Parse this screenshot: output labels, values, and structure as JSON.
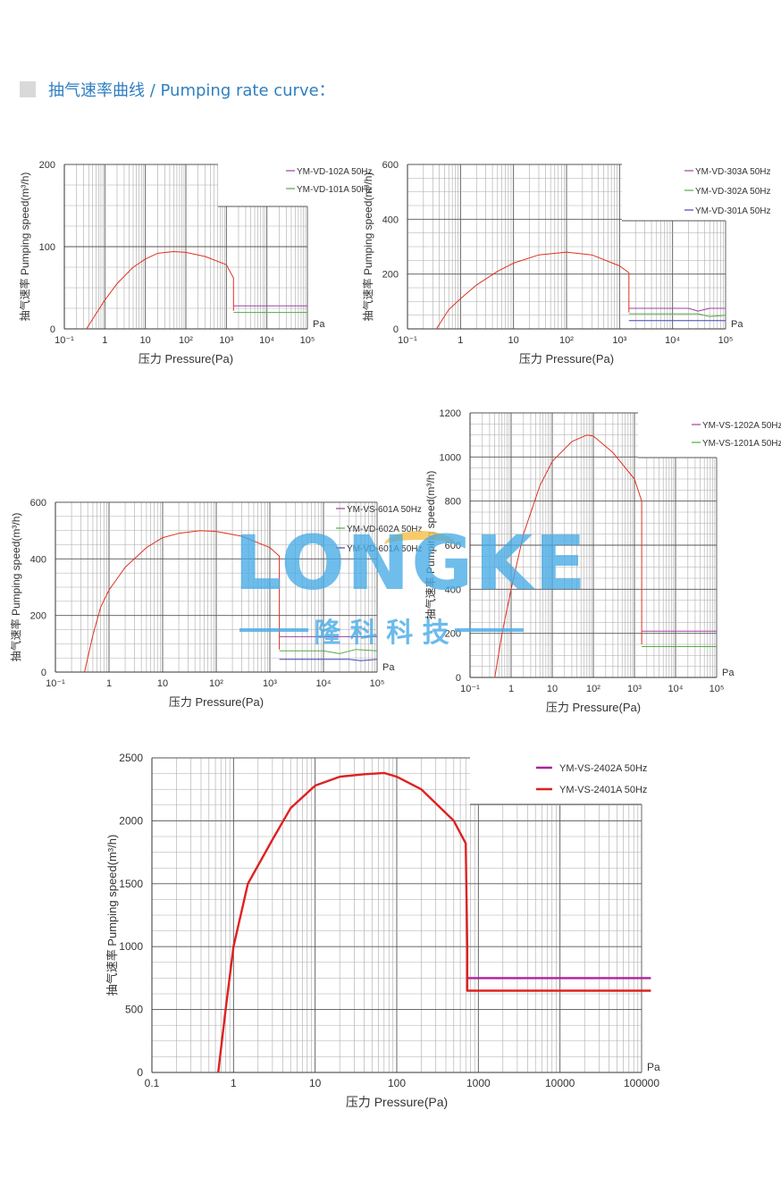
{
  "header": {
    "title": "抽气速率曲线 / Pumping rate curve："
  },
  "watermark": {
    "logo": "LONGKE",
    "subtitle": "隆 科 科 技"
  },
  "chart_data": [
    {
      "type": "line",
      "ylabel": "抽气速率 Pumping speed(m³/h)",
      "xlabel": "压力 Pressure(Pa)",
      "unit": "Pa",
      "xscale": "log",
      "xticks": [
        0.1,
        1,
        10,
        100,
        1000,
        10000,
        100000
      ],
      "xticklabels": [
        "10⁻¹",
        "1",
        "10",
        "10²",
        "10³",
        "10⁴",
        "10⁵"
      ],
      "yticks": [
        0,
        100,
        200
      ],
      "yticklabels": [
        "0",
        "100",
        "200"
      ],
      "ylim": [
        0,
        200
      ],
      "legend": "top-right",
      "series": [
        {
          "name": "YM-VD-102A 50Hz",
          "color": "#a040a0",
          "points": [
            [
              1500,
              28
            ],
            [
              100000,
              28
            ]
          ]
        },
        {
          "name": "YM-VD-101A 50Hz",
          "color": "#55aa44",
          "points": [
            [
              1500,
              20
            ],
            [
              100000,
              20
            ]
          ]
        },
        {
          "name": "",
          "color": "#e03020",
          "points": [
            [
              0.35,
              0
            ],
            [
              0.6,
              18
            ],
            [
              1,
              35
            ],
            [
              2,
              55
            ],
            [
              5,
              75
            ],
            [
              10,
              85
            ],
            [
              20,
              92
            ],
            [
              50,
              94
            ],
            [
              100,
              93
            ],
            [
              300,
              88
            ],
            [
              1000,
              78
            ],
            [
              1500,
              62
            ],
            [
              1500,
              22
            ]
          ]
        }
      ]
    },
    {
      "type": "line",
      "ylabel": "抽气速率 Pumping speed(m³/h)",
      "xlabel": "压力 Pressure(Pa)",
      "unit": "Pa",
      "xscale": "log",
      "xticks": [
        0.1,
        1,
        10,
        100,
        1000,
        10000,
        100000
      ],
      "xticklabels": [
        "10⁻¹",
        "1",
        "10",
        "10²",
        "10³",
        "10⁴",
        "10⁵"
      ],
      "yticks": [
        0,
        200,
        400,
        600
      ],
      "yticklabels": [
        "0",
        "200",
        "400",
        "600"
      ],
      "ylim": [
        0,
        600
      ],
      "legend": "top-right",
      "series": [
        {
          "name": "YM-VD-303A 50Hz",
          "color": "#a040a0",
          "points": [
            [
              1500,
              75
            ],
            [
              20000,
              75
            ],
            [
              30000,
              65
            ],
            [
              50000,
              75
            ],
            [
              100000,
              75
            ]
          ]
        },
        {
          "name": "YM-VD-302A 50Hz",
          "color": "#55aa44",
          "points": [
            [
              1500,
              55
            ],
            [
              30000,
              55
            ],
            [
              50000,
              45
            ],
            [
              100000,
              50
            ]
          ]
        },
        {
          "name": "YM-VD-301A 50Hz",
          "color": "#4444bb",
          "points": [
            [
              1500,
              30
            ],
            [
              100000,
              30
            ]
          ]
        },
        {
          "name": "",
          "color": "#e03020",
          "points": [
            [
              0.35,
              0
            ],
            [
              0.6,
              70
            ],
            [
              1,
              110
            ],
            [
              2,
              160
            ],
            [
              5,
              210
            ],
            [
              10,
              240
            ],
            [
              30,
              270
            ],
            [
              100,
              280
            ],
            [
              300,
              270
            ],
            [
              1000,
              230
            ],
            [
              1500,
              205
            ],
            [
              1500,
              60
            ]
          ]
        }
      ]
    },
    {
      "type": "line",
      "ylabel": "抽气速率 Pumping speed(m³/h)",
      "xlabel": "压力 Pressure(Pa)",
      "unit": "Pa",
      "xscale": "log",
      "xticks": [
        0.1,
        1,
        10,
        100,
        1000,
        10000,
        100000
      ],
      "xticklabels": [
        "10⁻¹",
        "1",
        "10",
        "10²",
        "10³",
        "10⁴",
        "10⁵"
      ],
      "yticks": [
        0,
        200,
        400,
        600
      ],
      "yticklabels": [
        "0",
        "200",
        "400",
        "600"
      ],
      "ylim": [
        0,
        600
      ],
      "legend": "top-right",
      "series": [
        {
          "name": "YM-VS-601A 50Hz",
          "color": "#a040a0",
          "points": [
            [
              1500,
              125
            ],
            [
              100000,
              125
            ]
          ]
        },
        {
          "name": "YM-VD-602A 50Hz",
          "color": "#55aa44",
          "points": [
            [
              1500,
              75
            ],
            [
              10000,
              75
            ],
            [
              20000,
              65
            ],
            [
              40000,
              80
            ],
            [
              100000,
              75
            ]
          ]
        },
        {
          "name": "YM-VD-601A 50Hz",
          "color": "#4444bb",
          "points": [
            [
              1500,
              45
            ],
            [
              30000,
              45
            ],
            [
              50000,
              40
            ],
            [
              100000,
              45
            ]
          ]
        },
        {
          "name": "",
          "color": "#e03020",
          "points": [
            [
              0.35,
              0
            ],
            [
              0.5,
              130
            ],
            [
              0.7,
              230
            ],
            [
              1,
              290
            ],
            [
              2,
              370
            ],
            [
              5,
              440
            ],
            [
              10,
              475
            ],
            [
              20,
              490
            ],
            [
              50,
              500
            ],
            [
              100,
              497
            ],
            [
              300,
              480
            ],
            [
              1000,
              440
            ],
            [
              1500,
              410
            ],
            [
              1500,
              80
            ]
          ]
        }
      ]
    },
    {
      "type": "line",
      "ylabel": "抽气速率 Pumping speed(m³/h)",
      "xlabel": "压力 Pressure(Pa)",
      "unit": "Pa",
      "xscale": "log",
      "xticks": [
        0.1,
        1,
        10,
        100,
        1000,
        10000,
        100000
      ],
      "xticklabels": [
        "10⁻¹",
        "1",
        "10",
        "10²",
        "10³",
        "10⁴",
        "10⁵"
      ],
      "yticks": [
        0,
        200,
        400,
        600,
        800,
        1000,
        1200
      ],
      "yticklabels": [
        "0",
        "200",
        "400",
        "600",
        "800",
        "1000",
        "1200"
      ],
      "ylim": [
        0,
        1200
      ],
      "legend": "top-right",
      "series": [
        {
          "name": "YM-VS-1202A 50Hz",
          "color": "#a040a0",
          "points": [
            [
              1500,
              210
            ],
            [
              100000,
              210
            ]
          ]
        },
        {
          "name": "YM-VS-1201A 50Hz",
          "color": "#55aa44",
          "points": [
            [
              1500,
              140
            ],
            [
              100000,
              140
            ]
          ]
        },
        {
          "name": "",
          "color": "#e03020",
          "points": [
            [
              0.4,
              0
            ],
            [
              0.6,
              200
            ],
            [
              1,
              400
            ],
            [
              2,
              650
            ],
            [
              5,
              870
            ],
            [
              10,
              980
            ],
            [
              30,
              1070
            ],
            [
              70,
              1100
            ],
            [
              100,
              1095
            ],
            [
              300,
              1020
            ],
            [
              1000,
              900
            ],
            [
              1500,
              800
            ],
            [
              1500,
              150
            ]
          ]
        }
      ]
    },
    {
      "type": "line",
      "ylabel": "抽气速率 Pumping speed(m³/h)",
      "xlabel": "压力 Pressure(Pa)",
      "unit": "Pa",
      "xscale": "log",
      "xticks": [
        0.1,
        1,
        10,
        100,
        1000,
        10000,
        100000
      ],
      "xticklabels": [
        "0.1",
        "1",
        "10",
        "100",
        "1000",
        "10000",
        "100000"
      ],
      "yticks": [
        0,
        500,
        1000,
        1500,
        2000,
        2500
      ],
      "yticklabels": [
        "0",
        "500",
        "1000",
        "1500",
        "2000",
        "2500"
      ],
      "ylim": [
        0,
        2500
      ],
      "legend": "top-right",
      "series": [
        {
          "name": "YM-VS-2402A 50Hz",
          "color": "#b0209a",
          "points": [
            [
              730,
              750
            ],
            [
              130000,
              750
            ]
          ]
        },
        {
          "name": "YM-VS-2401A 50Hz",
          "color": "#e02020",
          "points": [
            [
              0.65,
              0
            ],
            [
              0.8,
              500
            ],
            [
              1,
              1000
            ],
            [
              1.5,
              1500
            ],
            [
              3,
              1850
            ],
            [
              5,
              2100
            ],
            [
              10,
              2280
            ],
            [
              20,
              2350
            ],
            [
              40,
              2370
            ],
            [
              70,
              2380
            ],
            [
              100,
              2350
            ],
            [
              200,
              2250
            ],
            [
              500,
              2000
            ],
            [
              700,
              1820
            ],
            [
              730,
              1000
            ],
            [
              730,
              650
            ],
            [
              130000,
              650
            ]
          ]
        }
      ]
    }
  ]
}
